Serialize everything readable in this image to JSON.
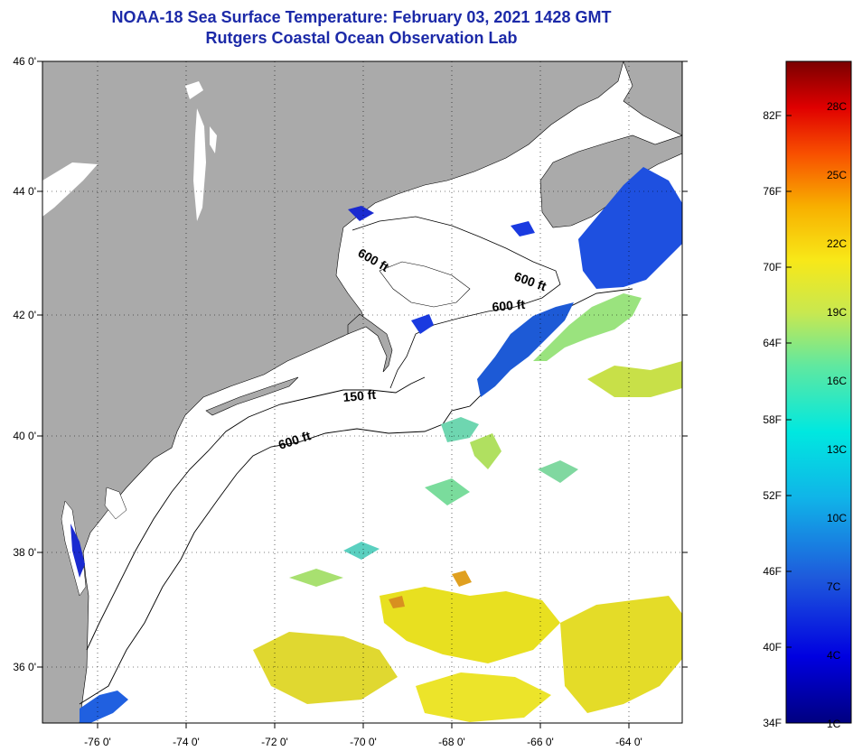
{
  "title": {
    "line1": "NOAA-18 Sea Surface Temperature:  February 03, 2021 1428 GMT",
    "line2": "Rutgers Coastal Ocean Observation Lab"
  },
  "map": {
    "lat_labels": [
      "46 0'",
      "44 0'",
      "42 0'",
      "40 0'",
      "38 0'",
      "36 0'"
    ],
    "lon_labels": [
      "-76 0'",
      "-74 0'",
      "-72 0'",
      "-70 0'",
      "-68 0'",
      "-66 0'",
      "-64 0'"
    ],
    "contour_labels": [
      "600 ft",
      "600 ft",
      "600 ft",
      "150 ft",
      "600 ft"
    ]
  },
  "colorbar": {
    "fahrenheit_labels": [
      "82F",
      "76F",
      "70F",
      "64F",
      "58F",
      "52F",
      "46F",
      "40F",
      "34F"
    ],
    "celsius_labels": [
      "28C",
      "25C",
      "22C",
      "19C",
      "16C",
      "13C",
      "10C",
      "7C",
      "4C",
      "1C"
    ]
  },
  "colors": {
    "title": "#1c2aa8",
    "land": "#aaaaaa",
    "ocean": "#ffffff"
  }
}
